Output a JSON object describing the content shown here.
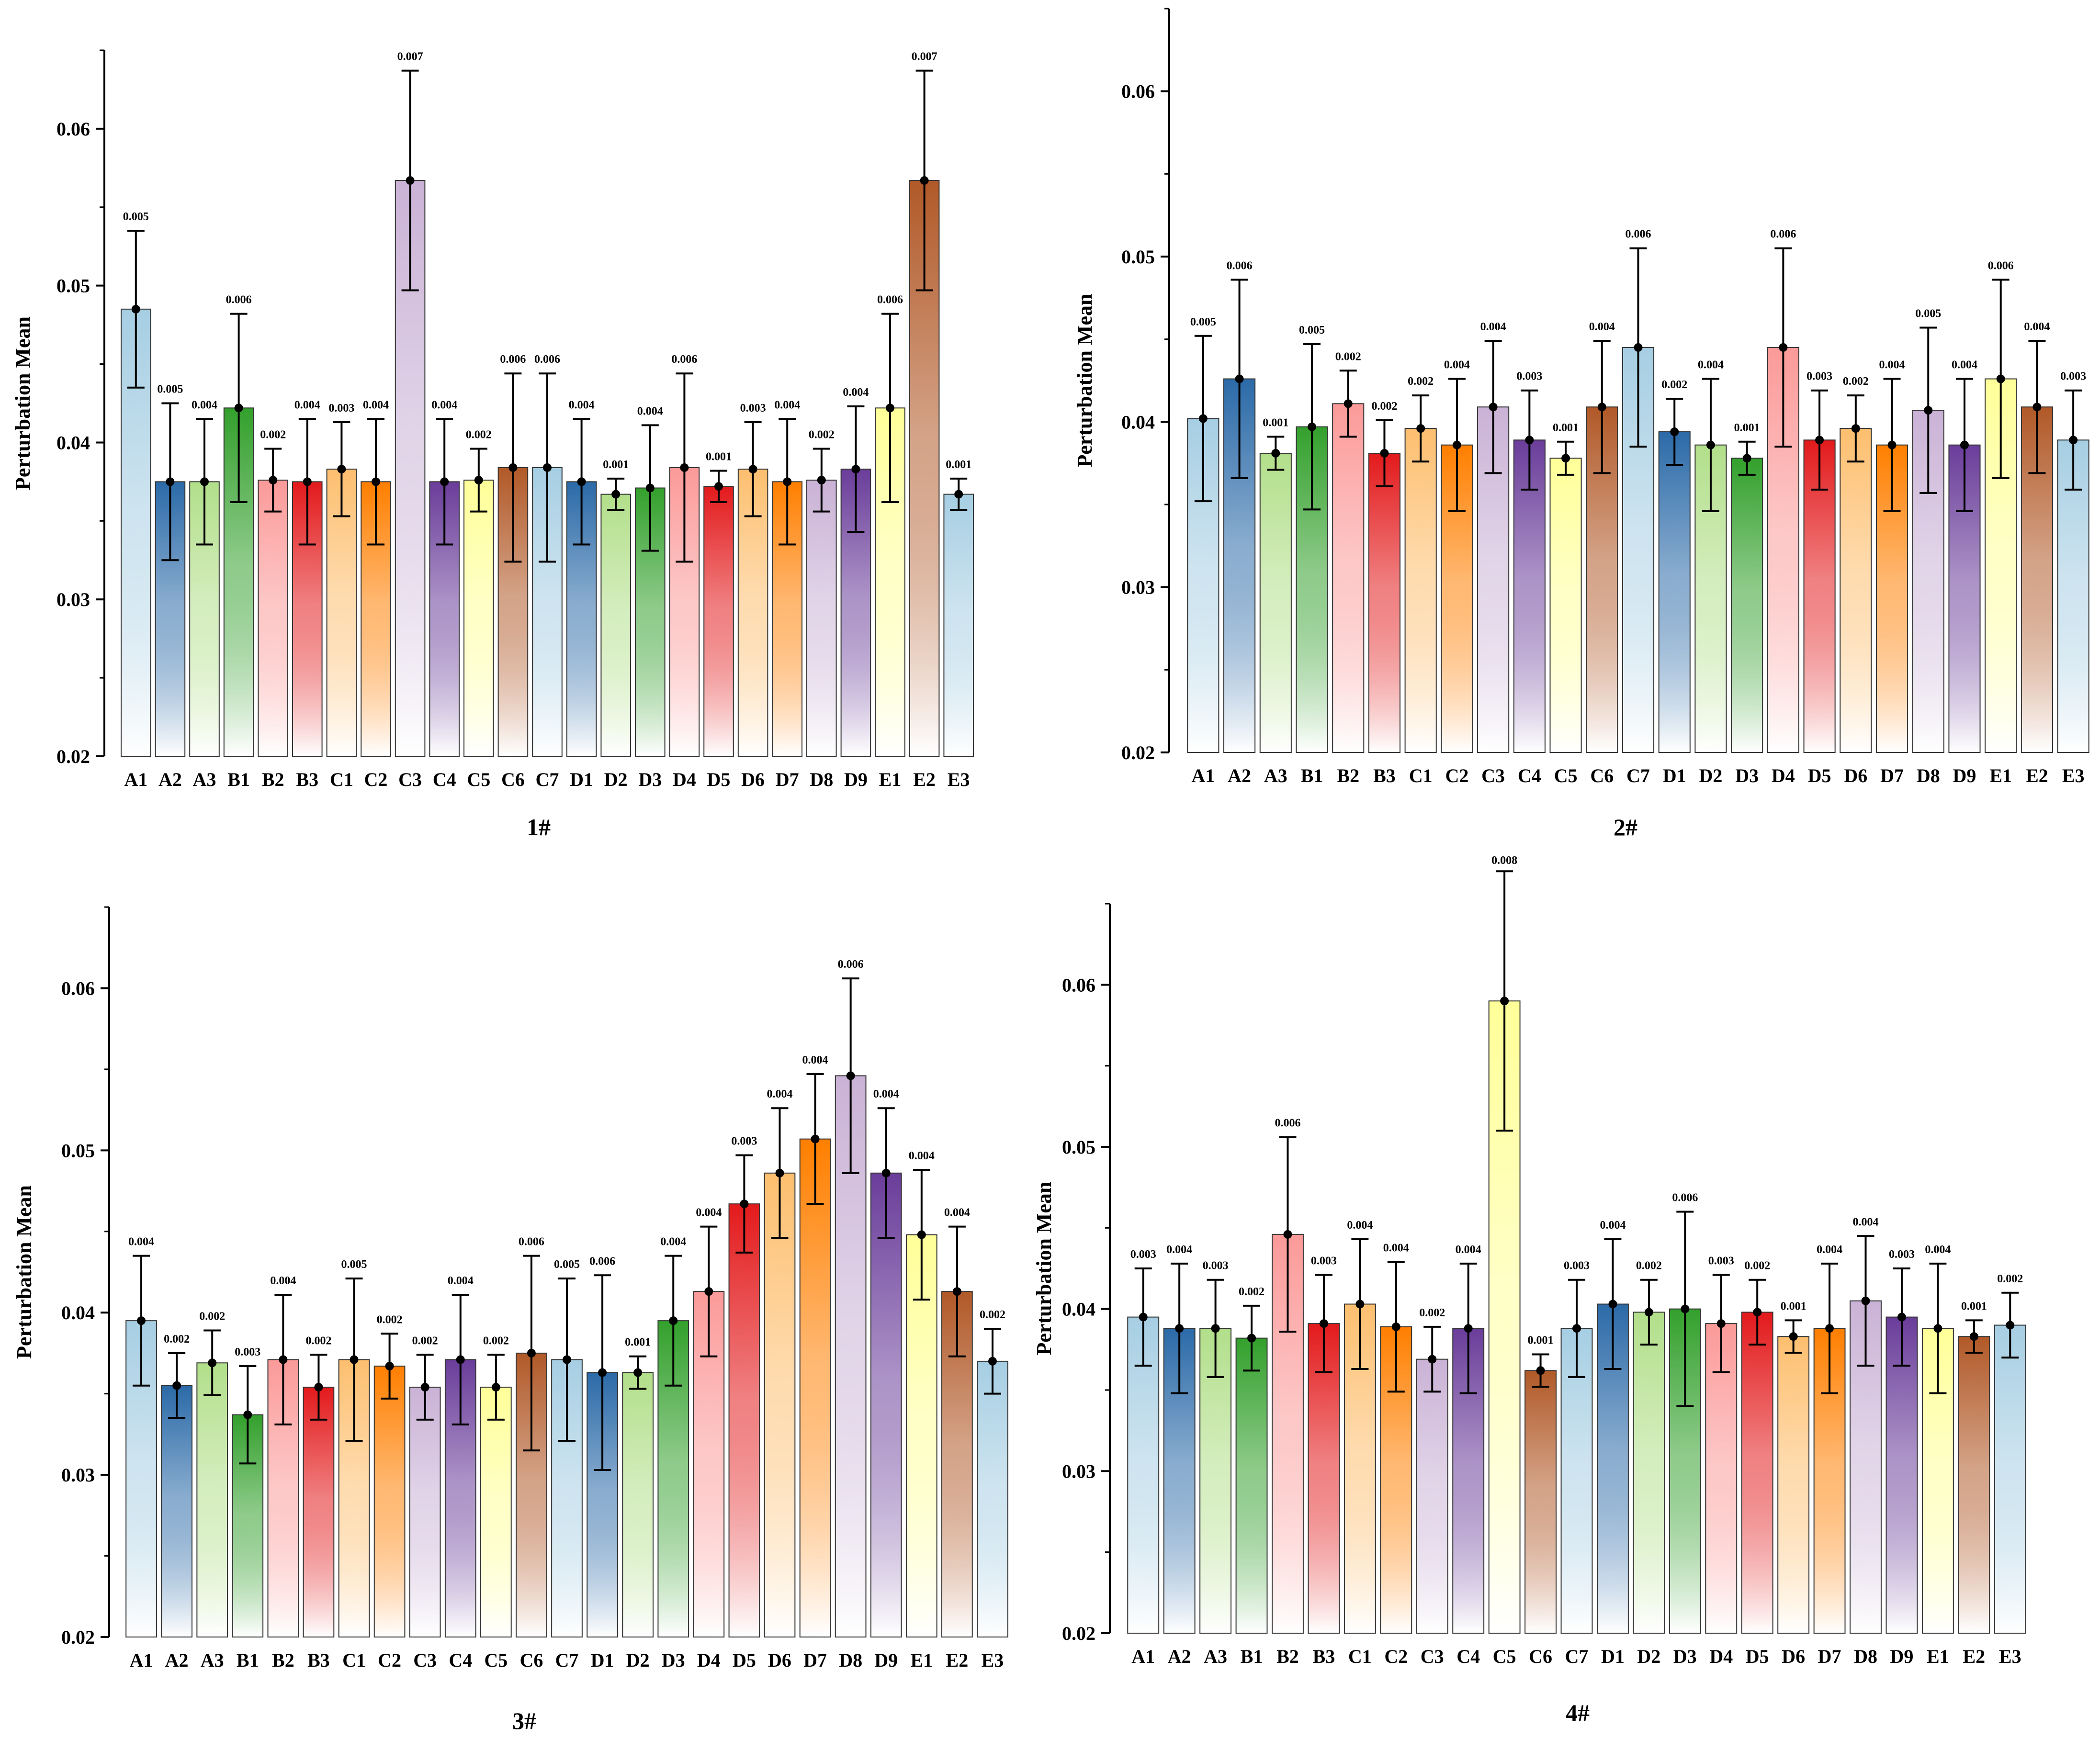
{
  "chart_data": [
    {
      "type": "bar",
      "panel": "1#",
      "title": "1#",
      "ylabel": "Perturbation Mean",
      "xlabel": "",
      "ylim": [
        0.02,
        0.065
      ],
      "yticks": [
        "0.02",
        "0.03",
        "0.04",
        "0.05",
        "0.06"
      ],
      "categories": [
        "A1",
        "A2",
        "A3",
        "B1",
        "B2",
        "B3",
        "C1",
        "C2",
        "C3",
        "C4",
        "C5",
        "C6",
        "C7",
        "D1",
        "D2",
        "D3",
        "D4",
        "D5",
        "D6",
        "D7",
        "D8",
        "D9",
        "E1",
        "E2",
        "E3"
      ],
      "values": [
        0.0485,
        0.0375,
        0.0375,
        0.0422,
        0.0376,
        0.0375,
        0.0383,
        0.0375,
        0.0567,
        0.0375,
        0.0376,
        0.0384,
        0.0384,
        0.0375,
        0.0367,
        0.0371,
        0.0384,
        0.0372,
        0.0383,
        0.0375,
        0.0376,
        0.0383,
        0.0422,
        0.0567,
        0.0367
      ],
      "errors": [
        0.005,
        0.005,
        0.004,
        0.006,
        0.002,
        0.004,
        0.003,
        0.004,
        0.007,
        0.004,
        0.002,
        0.006,
        0.006,
        0.004,
        0.001,
        0.004,
        0.006,
        0.001,
        0.003,
        0.004,
        0.002,
        0.004,
        0.006,
        0.007,
        0.001
      ],
      "error_labels": [
        "0.005",
        "0.005",
        "0.004",
        "0.006",
        "0.002",
        "0.004",
        "0.003",
        "0.004",
        "0.007",
        "0.004",
        "0.002",
        "0.006",
        "0.006",
        "0.004",
        "0.001",
        "0.004",
        "0.006",
        "0.001",
        "0.003",
        "0.004",
        "0.002",
        "0.004",
        "0.006",
        "0.007",
        "0.001"
      ]
    },
    {
      "type": "bar",
      "panel": "2#",
      "title": "2#",
      "ylabel": "Perturbation Mean",
      "xlabel": "",
      "ylim": [
        0.02,
        0.065
      ],
      "yticks": [
        "0.02",
        "0.03",
        "0.04",
        "0.05",
        "0.06"
      ],
      "categories": [
        "A1",
        "A2",
        "A3",
        "B1",
        "B2",
        "B3",
        "C1",
        "C2",
        "C3",
        "C4",
        "C5",
        "C6",
        "C7",
        "D1",
        "D2",
        "D3",
        "D4",
        "D5",
        "D6",
        "D7",
        "D8",
        "D9",
        "E1",
        "E2",
        "E3"
      ],
      "values": [
        0.0402,
        0.0426,
        0.0381,
        0.0397,
        0.0411,
        0.0381,
        0.0396,
        0.0386,
        0.0409,
        0.0389,
        0.0378,
        0.0409,
        0.0445,
        0.0394,
        0.0386,
        0.0378,
        0.0445,
        0.0389,
        0.0396,
        0.0386,
        0.0407,
        0.0386,
        0.0426,
        0.0409,
        0.0389
      ],
      "errors": [
        0.005,
        0.006,
        0.001,
        0.005,
        0.002,
        0.002,
        0.002,
        0.004,
        0.004,
        0.003,
        0.001,
        0.004,
        0.006,
        0.002,
        0.004,
        0.001,
        0.006,
        0.003,
        0.002,
        0.004,
        0.005,
        0.004,
        0.006,
        0.004,
        0.003
      ],
      "error_labels": [
        "0.005",
        "0.006",
        "0.001",
        "0.005",
        "0.002",
        "0.002",
        "0.002",
        "0.004",
        "0.004",
        "0.003",
        "0.001",
        "0.004",
        "0.006",
        "0.002",
        "0.004",
        "0.001",
        "0.006",
        "0.003",
        "0.002",
        "0.004",
        "0.005",
        "0.004",
        "0.006",
        "0.004",
        "0.003"
      ]
    },
    {
      "type": "bar",
      "panel": "3#",
      "title": "3#",
      "ylabel": "Perturbation Mean",
      "xlabel": "",
      "ylim": [
        0.02,
        0.065
      ],
      "yticks": [
        "0.02",
        "0.03",
        "0.04",
        "0.05",
        "0.06"
      ],
      "categories": [
        "A1",
        "A2",
        "A3",
        "B1",
        "B2",
        "B3",
        "C1",
        "C2",
        "C3",
        "C4",
        "C5",
        "C6",
        "C7",
        "D1",
        "D2",
        "D3",
        "D4",
        "D5",
        "D6",
        "D7",
        "D8",
        "D9",
        "E1",
        "E2",
        "E3"
      ],
      "values": [
        0.0395,
        0.0355,
        0.0369,
        0.0337,
        0.0371,
        0.0354,
        0.0371,
        0.0367,
        0.0354,
        0.0371,
        0.0354,
        0.0375,
        0.0371,
        0.0363,
        0.0363,
        0.0395,
        0.0413,
        0.0467,
        0.0486,
        0.0507,
        0.0546,
        0.0486,
        0.0448,
        0.0413,
        0.037
      ],
      "errors": [
        0.004,
        0.002,
        0.002,
        0.003,
        0.004,
        0.002,
        0.005,
        0.002,
        0.002,
        0.004,
        0.002,
        0.006,
        0.005,
        0.006,
        0.001,
        0.004,
        0.004,
        0.003,
        0.004,
        0.004,
        0.006,
        0.004,
        0.004,
        0.004,
        0.002
      ],
      "error_labels": [
        "0.004",
        "0.002",
        "0.002",
        "0.003",
        "0.004",
        "0.002",
        "0.005",
        "0.002",
        "0.002",
        "0.004",
        "0.002",
        "0.006",
        "0.005",
        "0.006",
        "0.001",
        "0.004",
        "0.004",
        "0.003",
        "0.004",
        "0.004",
        "0.006",
        "0.004",
        "0.004",
        "0.004",
        "0.002"
      ]
    },
    {
      "type": "bar",
      "panel": "4#",
      "title": "4#",
      "ylabel": "Perturbation Mean",
      "xlabel": "",
      "ylim": [
        0.02,
        0.065
      ],
      "yticks": [
        "0.02",
        "0.03",
        "0.04",
        "0.05",
        "0.06"
      ],
      "categories": [
        "A1",
        "A2",
        "A3",
        "B1",
        "B2",
        "B3",
        "C1",
        "C2",
        "C3",
        "C4",
        "C5",
        "C6",
        "C7",
        "D1",
        "D2",
        "D3",
        "D4",
        "D5",
        "D6",
        "D7",
        "D8",
        "D9",
        "E1",
        "E2",
        "E3"
      ],
      "values": [
        0.0395,
        0.0388,
        0.0388,
        0.0382,
        0.0446,
        0.0391,
        0.0403,
        0.0389,
        0.0369,
        0.0388,
        0.059,
        0.0362,
        0.0388,
        0.0403,
        0.0398,
        0.04,
        0.0391,
        0.0398,
        0.0383,
        0.0388,
        0.0405,
        0.0395,
        0.0388,
        0.0383,
        0.039
      ],
      "errors": [
        0.003,
        0.004,
        0.003,
        0.002,
        0.006,
        0.003,
        0.004,
        0.004,
        0.002,
        0.004,
        0.008,
        0.001,
        0.003,
        0.004,
        0.002,
        0.006,
        0.003,
        0.002,
        0.001,
        0.004,
        0.004,
        0.003,
        0.004,
        0.001,
        0.002
      ],
      "error_labels": [
        "0.003",
        "0.004",
        "0.003",
        "0.002",
        "0.006",
        "0.003",
        "0.004",
        "0.004",
        "0.002",
        "0.004",
        "0.008",
        "0.001",
        "0.003",
        "0.004",
        "0.002",
        "0.006",
        "0.003",
        "0.002",
        "0.001",
        "0.004",
        "0.004",
        "0.003",
        "0.004",
        "0.001",
        "0.002"
      ]
    }
  ],
  "colors": {
    "palette": [
      "#a6cee3",
      "#2b6aa8",
      "#b2df8a",
      "#33a02c",
      "#fb9a99",
      "#e31a1c",
      "#fdbf6f",
      "#ff7f00",
      "#cab2d6",
      "#6a3d9a",
      "#ffff99",
      "#b15928"
    ],
    "axis": "#000000",
    "error_bar": "#000000"
  }
}
